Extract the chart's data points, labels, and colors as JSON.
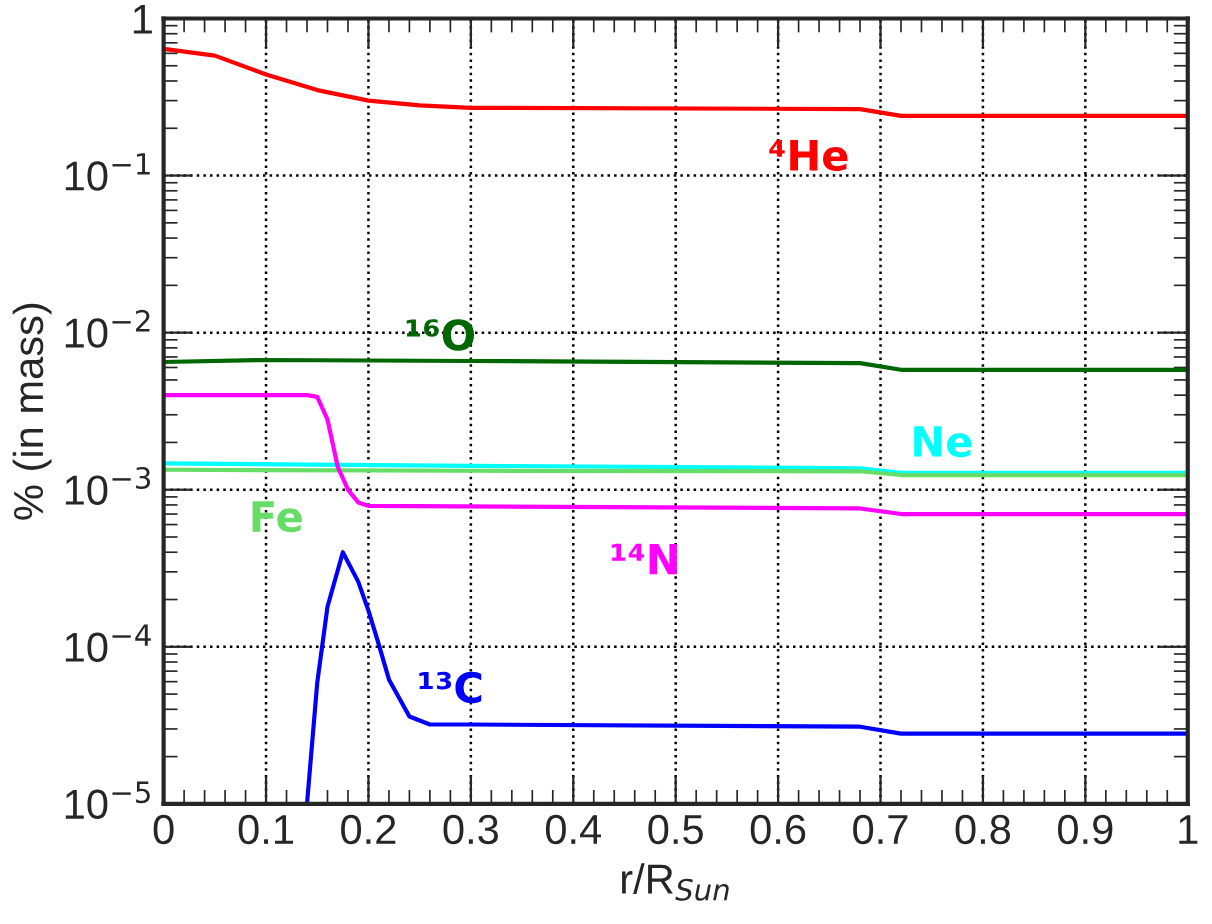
{
  "chart_data": {
    "type": "line",
    "xlabel": "r/R$_{Sun}$",
    "ylabel": "% (in mass)",
    "log": "y",
    "grid": true,
    "legend": false,
    "xlim": [
      0,
      1
    ],
    "ylim": [
      1e-05,
      1
    ],
    "xticks": [
      0,
      0.1,
      0.2,
      0.3,
      0.4,
      0.5,
      0.6,
      0.7,
      0.8,
      0.9,
      1
    ],
    "yticks": [
      {
        "value": 1e-05,
        "label": "10$^{−5}$"
      },
      {
        "value": 0.0001,
        "label": "10$^{−4}$"
      },
      {
        "value": 0.001,
        "label": "10$^{−3}$"
      },
      {
        "value": 0.01,
        "label": "10$^{−2}$"
      },
      {
        "value": 0.1,
        "label": "10$^{−1}$"
      },
      {
        "value": 1,
        "label": "1"
      }
    ],
    "series": [
      {
        "name": "⁴He",
        "color": "#ff0000",
        "x": [
          0,
          0.05,
          0.1,
          0.15,
          0.2,
          0.25,
          0.3,
          0.68,
          0.72,
          1
        ],
        "values": [
          0.64,
          0.58,
          0.44,
          0.35,
          0.3,
          0.28,
          0.27,
          0.265,
          0.24,
          0.24
        ]
      },
      {
        "name": "¹⁶O",
        "color": "#006600",
        "x": [
          0,
          0.1,
          0.3,
          0.68,
          0.72,
          1
        ],
        "values": [
          0.0065,
          0.0067,
          0.0066,
          0.0064,
          0.0058,
          0.0058
        ]
      },
      {
        "name": "Ne",
        "color": "#00ffff",
        "x": [
          0,
          0.3,
          0.68,
          0.72,
          1
        ],
        "values": [
          0.00147,
          0.00142,
          0.00137,
          0.00128,
          0.00128
        ]
      },
      {
        "name": "Fe",
        "color": "#66dd66",
        "x": [
          0,
          0.3,
          0.68,
          0.72,
          1
        ],
        "values": [
          0.00134,
          0.00132,
          0.00131,
          0.00124,
          0.00124
        ]
      },
      {
        "name": "¹⁴N",
        "color": "#ff00ff",
        "x": [
          0,
          0.14,
          0.15,
          0.16,
          0.17,
          0.18,
          0.19,
          0.2,
          0.68,
          0.72,
          1
        ],
        "values": [
          0.004,
          0.004,
          0.0039,
          0.0028,
          0.0014,
          0.001,
          0.00083,
          0.00079,
          0.00076,
          0.0007,
          0.0007
        ]
      },
      {
        "name": "¹³C",
        "color": "#0000ff",
        "x": [
          0.14,
          0.15,
          0.16,
          0.175,
          0.19,
          0.2,
          0.21,
          0.22,
          0.24,
          0.26,
          0.3,
          0.68,
          0.72,
          1
        ],
        "values": [
          1e-05,
          5.9e-05,
          0.00018,
          0.0004,
          0.00026,
          0.00017,
          0.000104,
          6.2e-05,
          3.6e-05,
          3.2e-05,
          3.2e-05,
          3.1e-05,
          2.8e-05,
          2.8e-05
        ]
      }
    ]
  }
}
